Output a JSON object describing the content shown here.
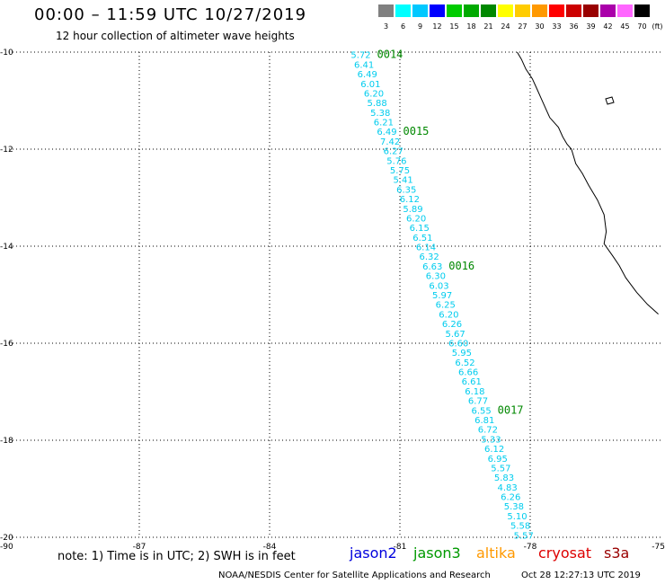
{
  "header": {
    "title": "00:00 – 11:59 UTC 10/27/2019",
    "subtitle": "12 hour collection of altimeter wave heights"
  },
  "color_scale": {
    "labels": [
      "3",
      "6",
      "9",
      "12",
      "15",
      "18",
      "21",
      "24",
      "27",
      "30",
      "33",
      "36",
      "39",
      "42",
      "45",
      "70"
    ],
    "unit": "(ft)",
    "colors": [
      "#808080",
      "#00ffff",
      "#00c8ff",
      "#0000ff",
      "#00cc00",
      "#00aa00",
      "#008800",
      "#ffff00",
      "#ffcc00",
      "#ff9900",
      "#ff0000",
      "#cc0000",
      "#990000",
      "#aa00aa",
      "#ff66ff",
      "#000000"
    ]
  },
  "map": {
    "lat_range": [
      -20,
      -10
    ],
    "lon_range": [
      -90,
      -75
    ],
    "lat_labels": [
      "-10",
      "-12",
      "-14",
      "-16",
      "-18",
      "-20"
    ],
    "lon_labels": [
      "-90",
      "-87",
      "-84",
      "-81",
      "-78",
      "-75"
    ],
    "track_color": "#00ccee",
    "time_color": "#008800",
    "coast_color": "#000000",
    "swh_readings": [
      "5.72",
      "6.41",
      "6.49",
      "6.01",
      "6.20",
      "5.88",
      "5.38",
      "6.21",
      "6.49",
      "7.42",
      "6.27",
      "5.76",
      "5.75",
      "5.41",
      "6.35",
      "6.12",
      "5.89",
      "6.20",
      "6.15",
      "6.51",
      "6.14",
      "6.32",
      "6.63",
      "6.30",
      "6.03",
      "5.97",
      "6.25",
      "6.20",
      "6.26",
      "5.67",
      "6.60",
      "5.95",
      "6.52",
      "6.66",
      "6.61",
      "6.18",
      "6.77",
      "6.55",
      "6.81",
      "6.72",
      "5.33",
      "6.12",
      "6.95",
      "5.57",
      "5.83",
      "4.83",
      "6.26",
      "5.38",
      "5.10",
      "5.58",
      "5.57"
    ],
    "time_markers": [
      {
        "label": "0014",
        "index": 0
      },
      {
        "label": "0015",
        "index": 8
      },
      {
        "label": "0016",
        "index": 22
      },
      {
        "label": "0017",
        "index": 37
      }
    ]
  },
  "note": "note: 1) Time is in UTC; 2) SWH is in feet",
  "satellites": [
    {
      "name": "jason2",
      "color": "#0000dd"
    },
    {
      "name": "jason3",
      "color": "#009900"
    },
    {
      "name": "altika",
      "color": "#ff9900"
    },
    {
      "name": "cryosat",
      "color": "#dd0000"
    },
    {
      "name": "s3a",
      "color": "#990000"
    }
  ],
  "footer": {
    "credit": "NOAA/NESDIS Center for Satellite Applications and Research",
    "timestamp": "Oct 28 12:27:13 UTC 2019"
  }
}
